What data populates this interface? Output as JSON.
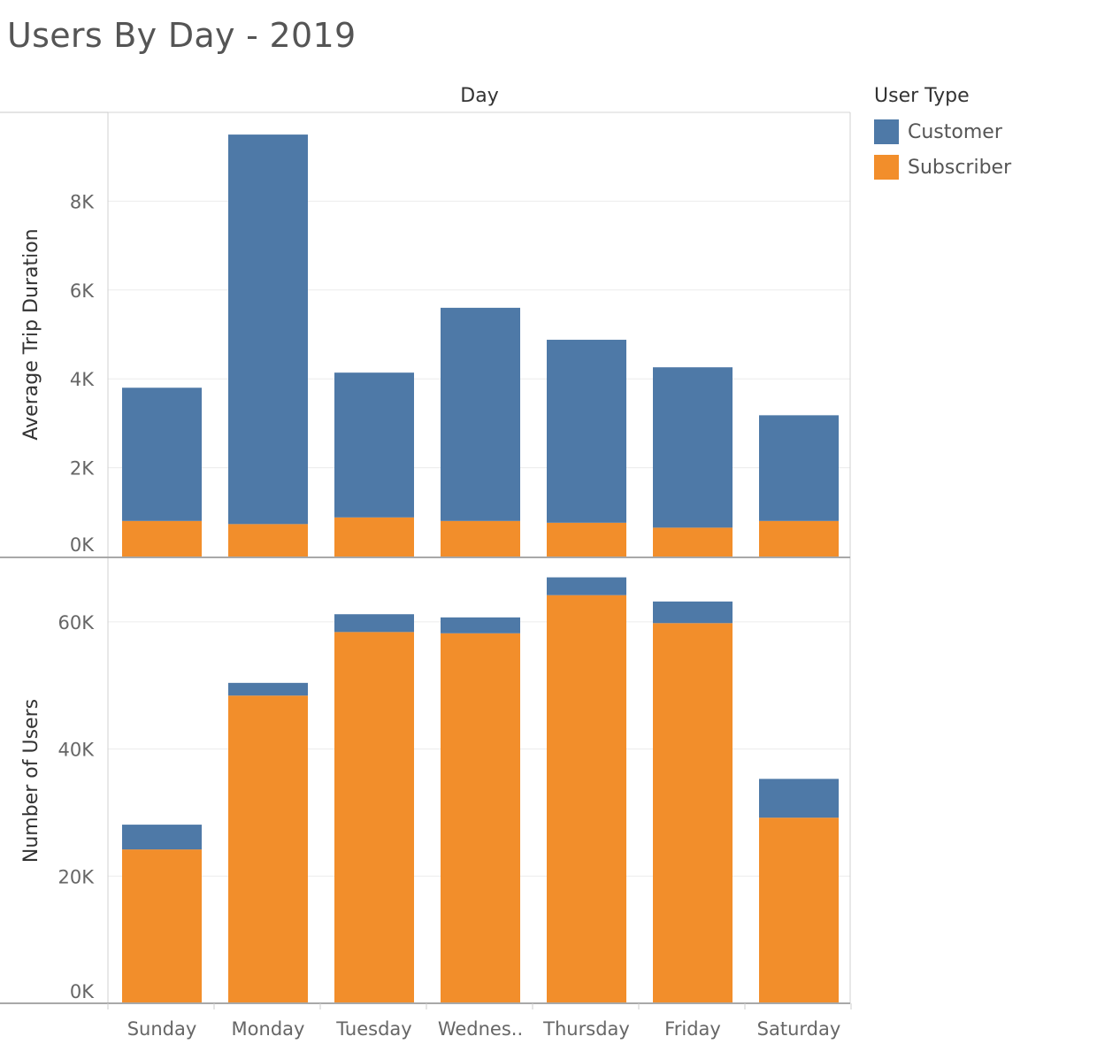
{
  "chart_data": {
    "title": "Users By Day - 2019",
    "column_header": "Day",
    "categories": [
      "Sunday",
      "Monday",
      "Tuesday",
      "Wednes..",
      "Thursday",
      "Friday",
      "Saturday"
    ],
    "legend": {
      "title": "User Type",
      "placement": "top-right",
      "items": [
        {
          "name": "Customer",
          "color": "#4e79a7"
        },
        {
          "name": "Subscriber",
          "color": "#f28e2b"
        }
      ]
    },
    "panels": [
      {
        "type": "bar",
        "stacked": true,
        "ylabel": "Average Trip Duration",
        "ylim": [
          0,
          10000
        ],
        "yticks": [
          0,
          2000,
          4000,
          6000,
          8000
        ],
        "ytick_labels": [
          "0K",
          "2K",
          "4K",
          "6K",
          "8K"
        ],
        "grid": true,
        "series": [
          {
            "name": "Subscriber",
            "values": [
              800,
              730,
              880,
              800,
              760,
              650,
              800
            ]
          },
          {
            "name": "Customer",
            "values": [
              3000,
              8770,
              3260,
              4800,
              4120,
              3610,
              2380
            ]
          }
        ]
      },
      {
        "type": "bar",
        "stacked": true,
        "ylabel": "Number of Users",
        "ylim": [
          0,
          70000
        ],
        "yticks": [
          0,
          20000,
          40000,
          60000
        ],
        "ytick_labels": [
          "0K",
          "20K",
          "40K",
          "60K"
        ],
        "grid": true,
        "series": [
          {
            "name": "Subscriber",
            "values": [
              24200,
              48400,
              58400,
              58200,
              64200,
              59800,
              29200
            ]
          },
          {
            "name": "Customer",
            "values": [
              3900,
              2000,
              2800,
              2500,
              2800,
              3400,
              6100
            ]
          }
        ]
      }
    ]
  }
}
